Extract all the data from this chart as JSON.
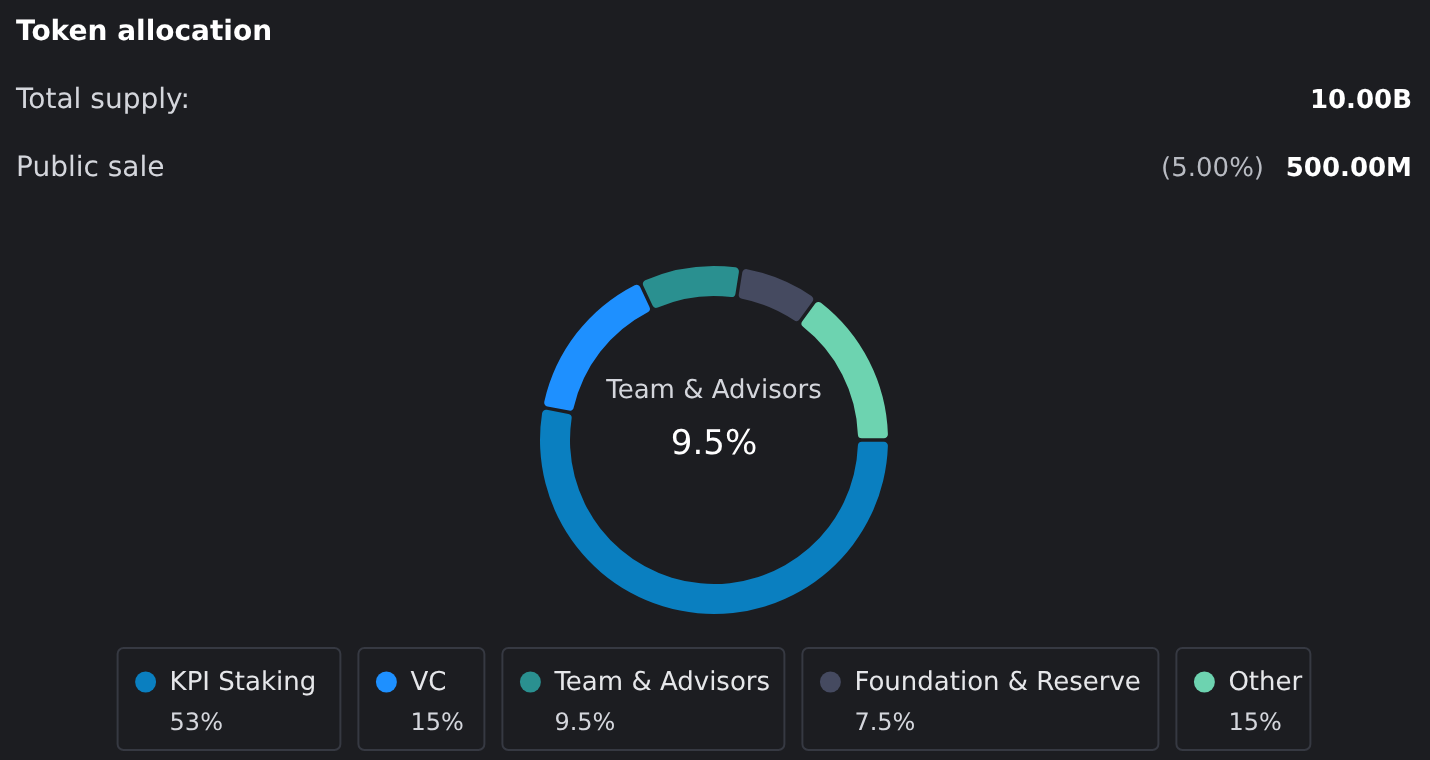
{
  "chart_data": {
    "type": "donut",
    "title": "Token allocation",
    "categories": [
      "KPI Staking",
      "VC",
      "Team & Advisors",
      "Foundation & Reserve",
      "Other"
    ],
    "values": [
      53,
      15,
      9.5,
      7.5,
      15
    ],
    "colors": [
      "#0a7fc0",
      "#1e90ff",
      "#2a9090",
      "#454a60",
      "#6dd3b0"
    ],
    "value_labels": [
      "53%",
      "15%",
      "9.5%",
      "7.5%",
      "15%"
    ],
    "legend": "bottom",
    "annotations": [
      "Total supply:",
      "10.00B",
      "Public sale",
      "(5.00%)",
      "500.00M",
      "Team & Advisors",
      "9.5%"
    ]
  }
}
